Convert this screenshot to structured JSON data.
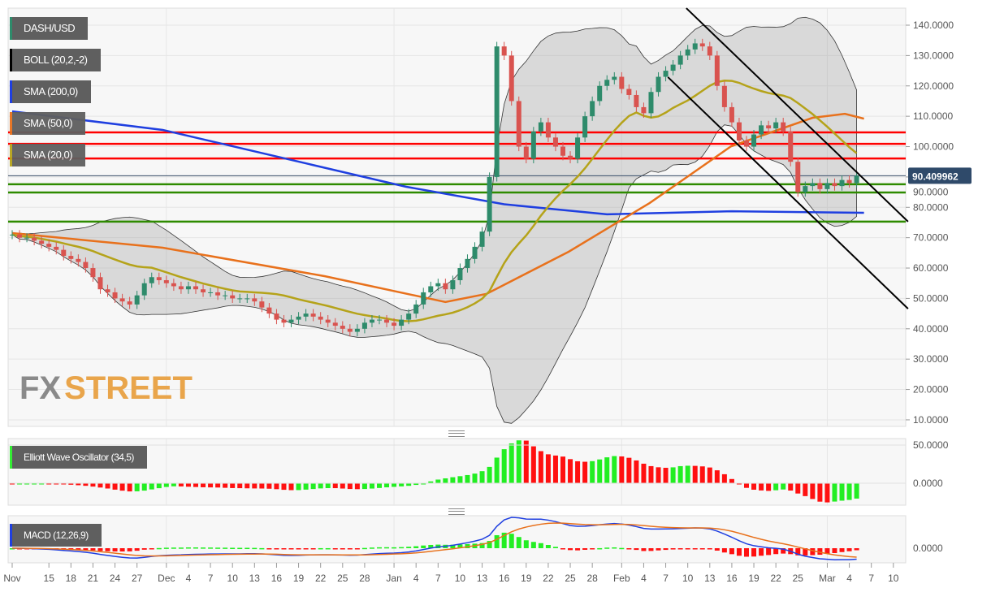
{
  "legends": {
    "main": [
      {
        "label": "DASH/USD",
        "color": "#2e8b6b"
      },
      {
        "label": "BOLL (20,2,-2)",
        "color": "#000000"
      },
      {
        "label": "SMA (200,0)",
        "color": "#1f3fe0"
      },
      {
        "label": "SMA (50,0)",
        "color": "#e8711c"
      },
      {
        "label": "SMA (20,0)",
        "color": "#b5a31a"
      }
    ],
    "ewo": {
      "label": "Elliott Wave Oscillator (34,5)",
      "color": "#33ee33"
    },
    "macd": {
      "label": "MACD (12,26,9)",
      "color": "#1f3fe0"
    }
  },
  "watermark": {
    "part1": "FX",
    "part2": "STREET"
  },
  "price_tag": "90.409962",
  "chart_data": {
    "type": "candlestick",
    "title": "DASH/USD",
    "ylim": [
      10,
      140
    ],
    "yticks": [
      "140.0000",
      "130.0000",
      "120.0000",
      "110.0000",
      "100.0000",
      "90.0000",
      "80.0000",
      "70.0000",
      "60.0000",
      "50.0000",
      "40.0000",
      "30.0000",
      "20.0000",
      "10.0000"
    ],
    "xticks": [
      {
        "label": "Nov",
        "i": 0
      },
      {
        "label": "15",
        "i": 5
      },
      {
        "label": "18",
        "i": 8
      },
      {
        "label": "21",
        "i": 11
      },
      {
        "label": "24",
        "i": 14
      },
      {
        "label": "27",
        "i": 17
      },
      {
        "label": "Dec",
        "i": 21
      },
      {
        "label": "4",
        "i": 24
      },
      {
        "label": "7",
        "i": 27
      },
      {
        "label": "10",
        "i": 30
      },
      {
        "label": "13",
        "i": 33
      },
      {
        "label": "16",
        "i": 36
      },
      {
        "label": "19",
        "i": 39
      },
      {
        "label": "22",
        "i": 42
      },
      {
        "label": "25",
        "i": 45
      },
      {
        "label": "28",
        "i": 48
      },
      {
        "label": "Jan",
        "i": 52
      },
      {
        "label": "4",
        "i": 55
      },
      {
        "label": "7",
        "i": 58
      },
      {
        "label": "10",
        "i": 61
      },
      {
        "label": "13",
        "i": 64
      },
      {
        "label": "16",
        "i": 67
      },
      {
        "label": "19",
        "i": 70
      },
      {
        "label": "22",
        "i": 73
      },
      {
        "label": "25",
        "i": 76
      },
      {
        "label": "28",
        "i": 79
      },
      {
        "label": "Feb",
        "i": 83
      },
      {
        "label": "4",
        "i": 86
      },
      {
        "label": "7",
        "i": 89
      },
      {
        "label": "10",
        "i": 92
      },
      {
        "label": "13",
        "i": 95
      },
      {
        "label": "16",
        "i": 98
      },
      {
        "label": "19",
        "i": 101
      },
      {
        "label": "22",
        "i": 104
      },
      {
        "label": "25",
        "i": 107
      },
      {
        "label": "Mar",
        "i": 111
      },
      {
        "label": "4",
        "i": 114
      },
      {
        "label": "7",
        "i": 117
      },
      {
        "label": "10",
        "i": 120
      }
    ],
    "closes": [
      71,
      70,
      70,
      69,
      68,
      67,
      66,
      64,
      63,
      62,
      60,
      57,
      53,
      52,
      50,
      49,
      48,
      51,
      55,
      57,
      56,
      55,
      54,
      53,
      54,
      53,
      52,
      52,
      51,
      51,
      50,
      50,
      50,
      49,
      47,
      45,
      43,
      42,
      43,
      44,
      45,
      44,
      43,
      42,
      41,
      40,
      39,
      40,
      42,
      43,
      43,
      42,
      41,
      43,
      45,
      48,
      52,
      54,
      55,
      53,
      56,
      60,
      63,
      67,
      72,
      90,
      133,
      130,
      115,
      100,
      96,
      105,
      108,
      103,
      100,
      97,
      96,
      103,
      110,
      115,
      120,
      122,
      123,
      119,
      117,
      113,
      111,
      118,
      123,
      125,
      127,
      130,
      132,
      134,
      133,
      130,
      120,
      113,
      108,
      102,
      100,
      104,
      107,
      106,
      108,
      105,
      95,
      85,
      87,
      88,
      86,
      88,
      87,
      89,
      88,
      90.41
    ],
    "sma200": [
      [
        0,
        111.6
      ],
      [
        20.5,
        105.5
      ],
      [
        53.6,
        86.8
      ],
      [
        67,
        81
      ],
      [
        81,
        77.7
      ],
      [
        98,
        78.7
      ],
      [
        116,
        78.2
      ]
    ],
    "sma50": [
      [
        0,
        71.5
      ],
      [
        20.5,
        66.7
      ],
      [
        42.6,
        57.3
      ],
      [
        59,
        48.8
      ],
      [
        64.6,
        51.5
      ],
      [
        75.8,
        65.4
      ],
      [
        86.8,
        81.4
      ],
      [
        97.9,
        100.1
      ],
      [
        109,
        109.5
      ],
      [
        113.4,
        110.8
      ],
      [
        116,
        109.2
      ]
    ],
    "resistance_levels": [
      104.7,
      100.9,
      96.1
    ],
    "support_levels": [
      87.6,
      84.9,
      75.3
    ],
    "current_price": 90.409962,
    "trendlines": [
      [
        [
          91.8,
          145.6
        ],
        [
          122,
          75.3
        ]
      ],
      [
        [
          89.3,
          122.9
        ],
        [
          122,
          46.6
        ]
      ]
    ],
    "ewo_ticks": [
      "50.0000",
      "0.0000"
    ],
    "macd_ticks": [
      "0.0000"
    ]
  },
  "colors": {
    "up": "#2e8b6b",
    "down": "#d9534f",
    "res": "#ff0000",
    "sup": "#2e8b00",
    "sma200": "#1f3fe0",
    "sma50": "#e8711c",
    "sma20": "#b5a31a",
    "ewoUp": "#22ee22",
    "ewoDown": "#ff1010"
  }
}
